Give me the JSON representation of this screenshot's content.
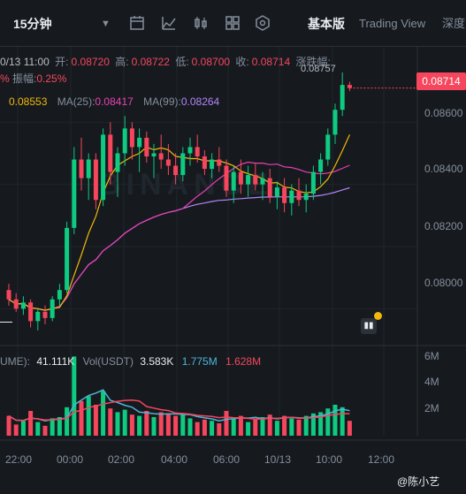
{
  "toolbar": {
    "interval": "15分钟",
    "caret": "▼",
    "basic_version": "基本版",
    "trading_view": "Trading View",
    "depth": "深度"
  },
  "info": {
    "datetime": "0/13 11:00",
    "open_label": "开:",
    "open": "0.08720",
    "high_label": "高:",
    "high": "0.08722",
    "low_label": "低:",
    "low": "0.08700",
    "close_label": "收:",
    "close": "0.08714",
    "change_label": "涨跌幅:",
    "change_value": "%",
    "amplitude_label": "振幅:",
    "amplitude": "0.25%"
  },
  "ma": {
    "ma7_value": "0.08553",
    "ma25_label": "MA(25):",
    "ma25_value": "0.08417",
    "ma99_label": "MA(99):",
    "ma99_value": "0.08264"
  },
  "price_axis": {
    "current_price": "0.08714",
    "high_marker": "0.08757",
    "ticks": [
      "0.08600",
      "0.08400",
      "0.08200",
      "0.08000"
    ]
  },
  "volume": {
    "label": "UME):",
    "value": "41.111K",
    "vol_usdt_label": "Vol(USDT)",
    "vol_usdt": "3.583K",
    "ma1": "1.775M",
    "ma2": "1.628M",
    "ticks": [
      "6M",
      "4M",
      "2M"
    ]
  },
  "time_axis": [
    "22:00",
    "00:00",
    "02:00",
    "04:00",
    "06:00",
    "10/13",
    "10:00",
    "12:00"
  ],
  "watermark": "BINANCE",
  "credit": "@陈小艺",
  "colors": {
    "up": "#0ecb81",
    "down": "#f6465d",
    "ma7": "#f0b90b",
    "ma25": "#eb40b5",
    "ma99": "#b385f8",
    "vol_ma1": "#4fb4d8",
    "vol_ma2": "#f6465d"
  },
  "chart_data": {
    "type": "candlestick",
    "price_range": [
      0.0789,
      0.0878
    ],
    "candles": [
      [
        0.0806,
        0.0808,
        0.0801,
        0.0803
      ],
      [
        0.0803,
        0.0805,
        0.0799,
        0.08
      ],
      [
        0.08,
        0.0804,
        0.0798,
        0.0802
      ],
      [
        0.0802,
        0.0803,
        0.0794,
        0.0796
      ],
      [
        0.0796,
        0.08,
        0.0793,
        0.0799
      ],
      [
        0.0799,
        0.0801,
        0.0795,
        0.0797
      ],
      [
        0.0797,
        0.0804,
        0.0796,
        0.0803
      ],
      [
        0.0803,
        0.0808,
        0.0801,
        0.0806
      ],
      [
        0.0806,
        0.0828,
        0.0805,
        0.0826
      ],
      [
        0.0826,
        0.0852,
        0.0824,
        0.0848
      ],
      [
        0.0848,
        0.0855,
        0.0838,
        0.0842
      ],
      [
        0.0842,
        0.085,
        0.0835,
        0.0848
      ],
      [
        0.0848,
        0.085,
        0.0832,
        0.0835
      ],
      [
        0.0835,
        0.0858,
        0.0833,
        0.0856
      ],
      [
        0.0856,
        0.086,
        0.084,
        0.0844
      ],
      [
        0.0844,
        0.0852,
        0.0836,
        0.085
      ],
      [
        0.085,
        0.0862,
        0.0846,
        0.0858
      ],
      [
        0.0858,
        0.086,
        0.0848,
        0.0852
      ],
      [
        0.0852,
        0.0858,
        0.0844,
        0.0855
      ],
      [
        0.0855,
        0.0857,
        0.0847,
        0.0849
      ],
      [
        0.0849,
        0.0853,
        0.0842,
        0.085
      ],
      [
        0.085,
        0.0856,
        0.0845,
        0.0848
      ],
      [
        0.0848,
        0.0853,
        0.0843,
        0.0846
      ],
      [
        0.0846,
        0.085,
        0.084,
        0.0843
      ],
      [
        0.0843,
        0.0852,
        0.0841,
        0.085
      ],
      [
        0.085,
        0.0855,
        0.0846,
        0.0852
      ],
      [
        0.0852,
        0.0856,
        0.0847,
        0.0849
      ],
      [
        0.0849,
        0.0851,
        0.0843,
        0.0845
      ],
      [
        0.0845,
        0.085,
        0.0842,
        0.0848
      ],
      [
        0.0848,
        0.0852,
        0.0844,
        0.0846
      ],
      [
        0.0846,
        0.0848,
        0.0836,
        0.0838
      ],
      [
        0.0838,
        0.0846,
        0.0834,
        0.0844
      ],
      [
        0.0844,
        0.0848,
        0.0837,
        0.084
      ],
      [
        0.084,
        0.0846,
        0.0836,
        0.0843
      ],
      [
        0.0843,
        0.0847,
        0.0838,
        0.084
      ],
      [
        0.084,
        0.0844,
        0.0835,
        0.0842
      ],
      [
        0.0842,
        0.0845,
        0.0834,
        0.0836
      ],
      [
        0.0836,
        0.0841,
        0.0832,
        0.0839
      ],
      [
        0.0839,
        0.0842,
        0.0831,
        0.0834
      ],
      [
        0.0834,
        0.084,
        0.083,
        0.0838
      ],
      [
        0.0838,
        0.0842,
        0.0833,
        0.0835
      ],
      [
        0.0835,
        0.084,
        0.0831,
        0.0837
      ],
      [
        0.0837,
        0.0846,
        0.0835,
        0.0844
      ],
      [
        0.0844,
        0.085,
        0.084,
        0.0848
      ],
      [
        0.0848,
        0.0858,
        0.0846,
        0.0856
      ],
      [
        0.0856,
        0.0866,
        0.0853,
        0.0864
      ],
      [
        0.0864,
        0.0876,
        0.0862,
        0.0872
      ],
      [
        0.0872,
        0.0873,
        0.087,
        0.0871
      ]
    ],
    "volumes": [
      1.6,
      0.9,
      1.2,
      2.0,
      1.1,
      0.8,
      1.4,
      1.5,
      2.3,
      6.4,
      2.8,
      3.2,
      2.5,
      3.6,
      2.2,
      1.9,
      2.1,
      1.7,
      1.6,
      2.0,
      1.5,
      1.9,
      1.8,
      1.6,
      1.8,
      1.4,
      1.1,
      1.3,
      1.2,
      1.0,
      2.0,
      1.4,
      1.6,
      1.1,
      1.3,
      1.5,
      1.7,
      1.2,
      1.6,
      1.4,
      1.3,
      1.6,
      1.8,
      1.9,
      2.2,
      2.5,
      2.3,
      1.2
    ],
    "volume_range": [
      0,
      7
    ]
  }
}
